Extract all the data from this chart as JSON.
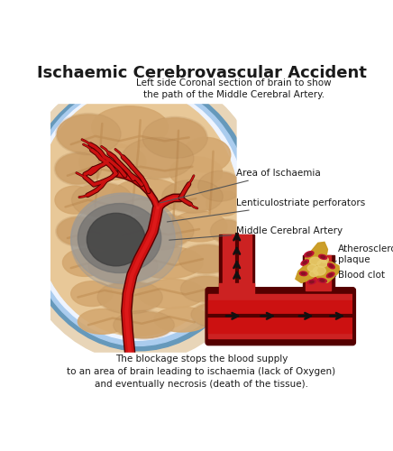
{
  "title": "Ischaemic Cerebrovascular Accident",
  "subtitle": "Left side Coronal section of brain to show\nthe path of the Middle Cerebral Artery.",
  "footer": "The blockage stops the blood supply\nto an area of brain leading to ischaemia (lack of Oxygen)\nand eventually necrosis (death of the tissue).",
  "labels": {
    "ischaemia": "Area of Ischaemia",
    "lenticulostriate": "Lenticulostriate perforators",
    "middle_cerebral": "Middle Cerebral Artery",
    "atherosclerotic": "Atherosclerotic\nplaque",
    "blood_clot": "Blood clot"
  },
  "colors": {
    "background": "#ffffff",
    "brain_tan": "#d4a870",
    "brain_medium": "#c4945a",
    "brain_dark": "#a07040",
    "brain_light": "#e8c898",
    "skull_beige": "#e8d5b8",
    "skull_dots": "#d4c0a0",
    "meninges_blue": "#6699bb",
    "meninges_light": "#aaccee",
    "meninges_white": "#eef4ff",
    "artery_red": "#cc1111",
    "artery_bright": "#ee2222",
    "artery_dark": "#880000",
    "artery_vdark": "#550000",
    "ischaemia_gray": "#999999",
    "ischaemia_mid": "#707070",
    "ischaemia_dark": "#404040",
    "plaque_yellow": "#d4aa30",
    "plaque_gold": "#c09020",
    "plaque_light": "#e8cc70",
    "clot_red": "#bb1133",
    "clot_dark": "#881122",
    "vessel_red": "#cc2222",
    "vessel_dark": "#991111",
    "vessel_vdark": "#550000",
    "arrow_black": "#111111",
    "text_dark": "#1a1a1a",
    "line_gray": "#555555"
  },
  "font_sizes": {
    "title": 13,
    "subtitle": 7.5,
    "label": 7.5,
    "footer": 7.5
  }
}
